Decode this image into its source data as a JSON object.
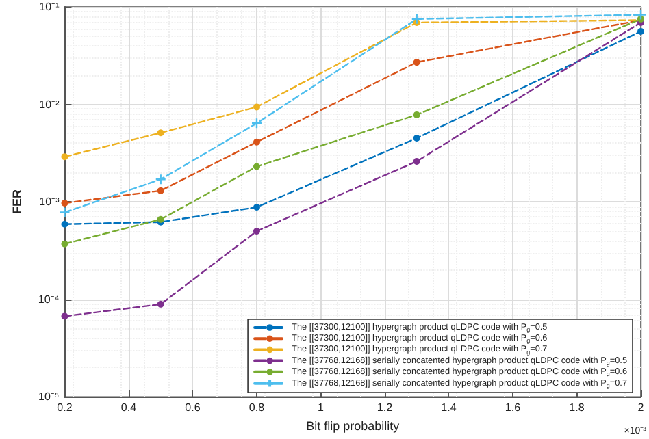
{
  "chart_data": {
    "type": "line",
    "xlabel": "Bit flip probability",
    "ylabel": "FER",
    "x": [
      0.2,
      0.5,
      0.8,
      1.3,
      2
    ],
    "xlim": [
      0.2,
      2
    ],
    "xticks": [
      0.2,
      0.4,
      0.6,
      0.8,
      1,
      1.2,
      1.4,
      1.6,
      1.8,
      2
    ],
    "log": "y",
    "ylim": [
      1e-05,
      0.1
    ],
    "yticks": [
      {
        "value": 1e-05,
        "label": "10⁻⁵"
      },
      {
        "value": 0.0001,
        "label": "10⁻⁴"
      },
      {
        "value": 0.001,
        "label": "10⁻³"
      },
      {
        "value": 0.01,
        "label": "10⁻²"
      },
      {
        "value": 0.1,
        "label": "10⁻¹"
      }
    ],
    "annotations": [
      "×10⁻³"
    ],
    "grid": true,
    "legend": "bottom right",
    "line_style": "dashed",
    "series": [
      {
        "name": "The [[37300,12100]] hypergraph product qLDPC code with P$_{g}$=0.5",
        "color": "#0072bd",
        "marker": "circle",
        "values": [
          0.00059,
          0.00062,
          0.00088,
          0.0045,
          0.056
        ]
      },
      {
        "name": "The [[37300,12100]] hypergraph product qLDPC code with P$_{g}$=0.6",
        "color": "#d95319",
        "marker": "circle",
        "values": [
          0.00097,
          0.0013,
          0.0041,
          0.027,
          0.073
        ]
      },
      {
        "name": "The [[37300,12100]] hypergraph product qLDPC code with P$_{g}$=0.7",
        "color": "#edb120",
        "marker": "circle",
        "values": [
          0.0029,
          0.0051,
          0.0094,
          0.069,
          0.073
        ]
      },
      {
        "name": "The [[37768,12168]] serially concatented hypergraph product qLDPC code with P$_{g}$=0.5",
        "color": "#7e2f8e",
        "marker": "circle",
        "values": [
          6.7e-05,
          8.9e-05,
          0.0005,
          0.0026,
          0.069
        ]
      },
      {
        "name": "The [[37768,12168]] serially concatented hypergraph product qLDPC code with P$_{g}$=0.6",
        "color": "#77ac30",
        "marker": "circle",
        "values": [
          0.00037,
          0.00066,
          0.0023,
          0.0078,
          0.075
        ]
      },
      {
        "name": "The [[37768,12168]] serially concatented hypergraph product qLDPC code with P$_{g}$=0.7",
        "color": "#4dbeee",
        "marker": "cross",
        "values": [
          0.00078,
          0.0017,
          0.0064,
          0.075,
          0.083
        ]
      }
    ]
  }
}
